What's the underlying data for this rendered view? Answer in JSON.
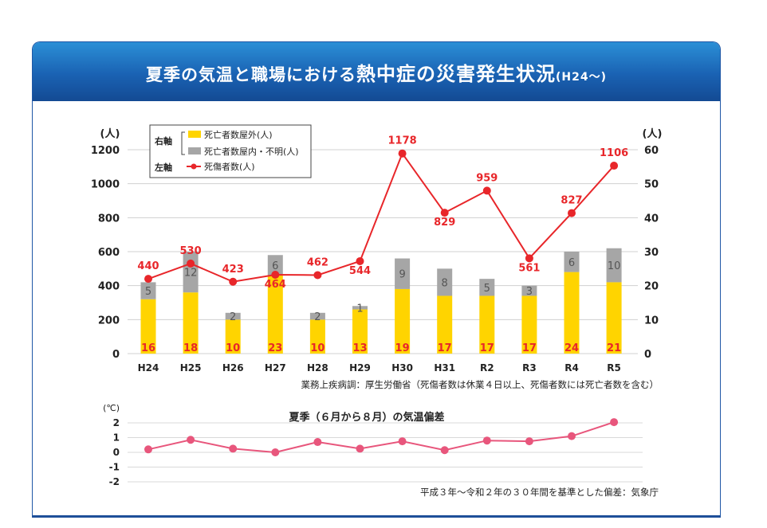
{
  "title": {
    "part1": "夏季の気温と職場における",
    "part2": "熱中症の災害発生状況",
    "part3": "(H24〜)"
  },
  "colors": {
    "outdoor_bar": "#ffd400",
    "indoor_bar": "#a6a6a6",
    "deaths_injuries_line": "#e8262a",
    "temp_line": "#e8567c",
    "header": "#1a62b3"
  },
  "chart_data": [
    {
      "type": "bar",
      "left_axis_unit": "(人)",
      "right_axis_unit": "(人)",
      "left_ylim": [
        0,
        1200
      ],
      "left_ticks": [
        "0",
        "200",
        "400",
        "600",
        "800",
        "1000",
        "1200"
      ],
      "right_ylim": [
        0,
        60
      ],
      "right_ticks": [
        "0",
        "10",
        "20",
        "30",
        "40",
        "50",
        "60"
      ],
      "categories": [
        "H24",
        "H25",
        "H26",
        "H27",
        "H28",
        "H29",
        "H30",
        "H31",
        "R2",
        "R3",
        "R4",
        "R5"
      ],
      "series": [
        {
          "name": "死亡者数屋外(人)",
          "axis": "right",
          "type": "stacked-bar",
          "values": [
            16,
            18,
            10,
            23,
            10,
            13,
            19,
            17,
            17,
            17,
            24,
            21
          ]
        },
        {
          "name": "死亡者数屋内・不明(人)",
          "axis": "right",
          "type": "stacked-bar",
          "values": [
            5,
            12,
            2,
            6,
            2,
            1,
            9,
            8,
            5,
            3,
            6,
            10
          ]
        },
        {
          "name": "死傷者数(人)",
          "axis": "left",
          "type": "line",
          "values": [
            440,
            530,
            423,
            464,
            462,
            544,
            1178,
            829,
            959,
            561,
            827,
            1106
          ]
        }
      ],
      "legend": {
        "right_axis_label": "右軸",
        "left_axis_label": "左軸",
        "items": [
          "死亡者数屋外(人)",
          "死亡者数屋内・不明(人)",
          "死傷者数(人)"
        ],
        "placement": "top-left"
      },
      "source": "業務上疾病調：厚生労働省（死傷者数は休業４日以上、死傷者数には死亡者数を含む）"
    },
    {
      "type": "line",
      "title": "夏季（６月から８月）の気温偏差",
      "ylabel": "(℃)",
      "ylim": [
        -2,
        2
      ],
      "ticks": [
        "2",
        "1",
        "0",
        "-1",
        "-2"
      ],
      "categories": [
        "H24",
        "H25",
        "H26",
        "H27",
        "H28",
        "H29",
        "H30",
        "H31",
        "R2",
        "R3",
        "R4",
        "R5"
      ],
      "values": [
        0.2,
        0.85,
        0.25,
        0.0,
        0.7,
        0.25,
        0.75,
        0.15,
        0.8,
        0.75,
        1.1,
        2.05
      ],
      "grid": true,
      "source": "平成３年〜令和２年の３０年間を基準とした偏差：気象庁"
    }
  ]
}
